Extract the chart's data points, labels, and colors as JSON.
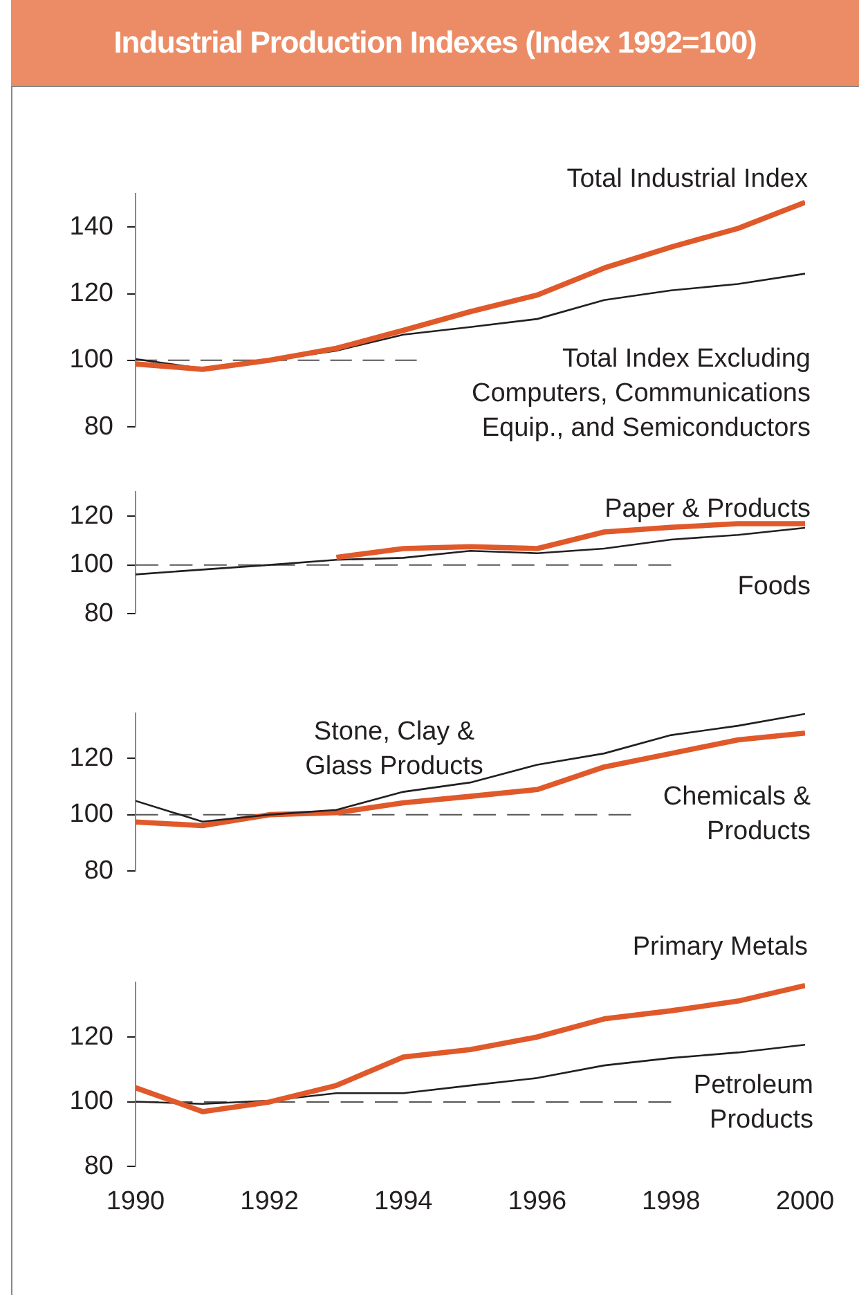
{
  "chart_data": [
    {
      "type": "line",
      "title": "Industrial Production Indexes (Index 1992=100)",
      "x": [
        1990,
        1991,
        1992,
        1993,
        1994,
        1995,
        1996,
        1997,
        1998,
        1999,
        2000
      ],
      "xlim": [
        1990,
        2000
      ],
      "xticks": [
        1990,
        1992,
        1994,
        1996,
        1998,
        2000
      ],
      "ylim": [
        80,
        150
      ],
      "yticks": [
        80,
        100,
        120,
        140
      ],
      "tick_labels": "y",
      "legend": false,
      "grid": false,
      "marker": "none",
      "series": [
        {
          "name": "Total Industrial Index",
          "color": "#e0592a",
          "values": [
            98.9,
            97.3,
            100,
            103.6,
            109,
            114.6,
            119.6,
            127.7,
            134,
            139.6,
            147.4
          ]
        },
        {
          "name": "Total Index Excluding Computers, Communications Equip., and Semiconductors",
          "color": "#231f20",
          "values": [
            100.4,
            97.5,
            100,
            102.9,
            107.7,
            110,
            112.4,
            118.1,
            121,
            122.9,
            126
          ]
        },
        {
          "color": "#555555",
          "line_style": "dashed",
          "x": [
            1990,
            1994.2
          ],
          "values": [
            100,
            100
          ]
        }
      ]
    },
    {
      "type": "line",
      "x": [
        1990,
        1991,
        1992,
        1993,
        1994,
        1995,
        1996,
        1997,
        1998,
        1999,
        2000
      ],
      "xlim": [
        1990,
        2000
      ],
      "xticks": [
        1990,
        1992,
        1994,
        1996,
        1998,
        2000
      ],
      "ylim": [
        80,
        130
      ],
      "yticks": [
        80,
        100,
        120
      ],
      "tick_labels": "y",
      "legend": false,
      "grid": false,
      "marker": "none",
      "series": [
        {
          "name": "Paper & Products",
          "color": "#e0592a",
          "values": [
            null,
            null,
            null,
            103.1,
            106.7,
            107.5,
            106.7,
            113.5,
            115.4,
            116.9,
            116.9
          ]
        },
        {
          "name": "Foods",
          "color": "#231f20",
          "values": [
            96.1,
            98.1,
            100,
            102.1,
            102.9,
            105.8,
            104.8,
            106.7,
            110.4,
            112.3,
            115.2
          ]
        },
        {
          "color": "#555555",
          "line_style": "dashed",
          "x": [
            1990,
            1998
          ],
          "values": [
            100,
            100
          ]
        }
      ]
    },
    {
      "type": "line",
      "x": [
        1990,
        1991,
        1992,
        1993,
        1994,
        1995,
        1996,
        1997,
        1998,
        1999,
        2000
      ],
      "xlim": [
        1990,
        2000
      ],
      "xticks": [
        1990,
        1992,
        1994,
        1996,
        1998,
        2000
      ],
      "ylim": [
        80,
        136
      ],
      "yticks": [
        80,
        100,
        120
      ],
      "tick_labels": "y",
      "legend": false,
      "grid": false,
      "marker": "none",
      "series": [
        {
          "name": "Stone, Clay & Glass Products",
          "color": "#231f20",
          "values": [
            104.9,
            97.5,
            100,
            101.7,
            108.1,
            111.4,
            117.7,
            121.7,
            128.2,
            131.5,
            135.7
          ]
        },
        {
          "name": "Chemicals & Products",
          "color": "#e0592a",
          "values": [
            97.4,
            96.1,
            100,
            100.7,
            104.2,
            106.5,
            108.9,
            116.9,
            121.7,
            126.5,
            128.9
          ]
        },
        {
          "color": "#555555",
          "line_style": "dashed",
          "x": [
            1990,
            1997.4
          ],
          "values": [
            100,
            100
          ]
        }
      ]
    },
    {
      "type": "line",
      "x": [
        1990,
        1991,
        1992,
        1993,
        1994,
        1995,
        1996,
        1997,
        1998,
        1999,
        2000
      ],
      "xlim": [
        1990,
        2000
      ],
      "xticks": [
        1990,
        1992,
        1994,
        1996,
        1998,
        2000
      ],
      "ylim": [
        80,
        137
      ],
      "yticks": [
        80,
        100,
        120
      ],
      "legend": false,
      "grid": false,
      "marker": "none",
      "series": [
        {
          "name": "Primary Metals",
          "color": "#e0592a",
          "values": [
            104.4,
            97,
            100,
            105.1,
            113.9,
            116.2,
            120.1,
            125.7,
            128.2,
            131.2,
            136
          ]
        },
        {
          "name": "Petroleum Products",
          "color": "#231f20",
          "values": [
            100.1,
            99.4,
            100.4,
            102.7,
            102.7,
            105.1,
            107.4,
            111.3,
            113.6,
            115.3,
            117.7
          ]
        },
        {
          "color": "#555555",
          "line_style": "dashed",
          "x": [
            1990,
            1998
          ],
          "values": [
            100,
            100
          ]
        }
      ]
    }
  ]
}
